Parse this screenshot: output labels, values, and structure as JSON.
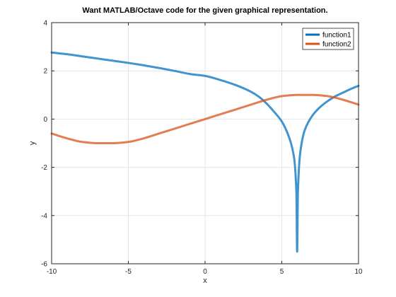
{
  "chart_data": {
    "type": "line",
    "title": "Want MATLAB/Octave code for the given graphical representation.",
    "xlabel": "x",
    "ylabel": "y",
    "xlim": [
      -10,
      10
    ],
    "ylim": [
      -6,
      4
    ],
    "xticks": [
      -10,
      -5,
      0,
      5,
      10
    ],
    "yticks": [
      -6,
      -4,
      -2,
      0,
      2,
      4
    ],
    "xtick_labels": [
      "-10",
      "-5",
      "0",
      "5",
      "10"
    ],
    "ytick_labels": [
      "-6",
      "-4",
      "-2",
      "0",
      "2",
      "4"
    ],
    "grid": true,
    "legend_position": "top-right",
    "series": [
      {
        "name": "function1",
        "color": "#0072bd",
        "x": [
          -10,
          -9,
          -8,
          -7,
          -6,
          -5,
          -4,
          -3,
          -2,
          -1,
          0,
          1,
          2,
          3,
          3.5,
          4,
          4.5,
          5,
          5.5,
          5.8,
          5.95,
          6.0,
          6.05,
          6.2,
          6.5,
          7,
          7.5,
          8,
          8.5,
          9,
          9.5,
          10
        ],
        "y": [
          2.76,
          2.69,
          2.6,
          2.51,
          2.42,
          2.33,
          2.23,
          2.12,
          2.0,
          1.87,
          1.79,
          1.62,
          1.41,
          1.13,
          0.93,
          0.65,
          0.3,
          -0.1,
          -0.8,
          -1.6,
          -3.0,
          -5.5,
          -3.0,
          -1.4,
          -0.45,
          0.15,
          0.5,
          0.75,
          0.95,
          1.1,
          1.25,
          1.38
        ]
      },
      {
        "name": "function2",
        "color": "#d95319",
        "x": [
          -10,
          -9,
          -8,
          -7,
          -6,
          -5,
          -4,
          -3,
          -2,
          -1,
          0,
          1,
          2,
          3,
          4,
          5,
          6,
          7,
          8,
          9,
          10
        ],
        "y": [
          -0.6,
          -0.8,
          -0.95,
          -1.0,
          -1.0,
          -0.95,
          -0.8,
          -0.6,
          -0.4,
          -0.2,
          0.0,
          0.2,
          0.4,
          0.6,
          0.8,
          0.95,
          1.0,
          1.0,
          0.95,
          0.8,
          0.6
        ]
      }
    ]
  }
}
